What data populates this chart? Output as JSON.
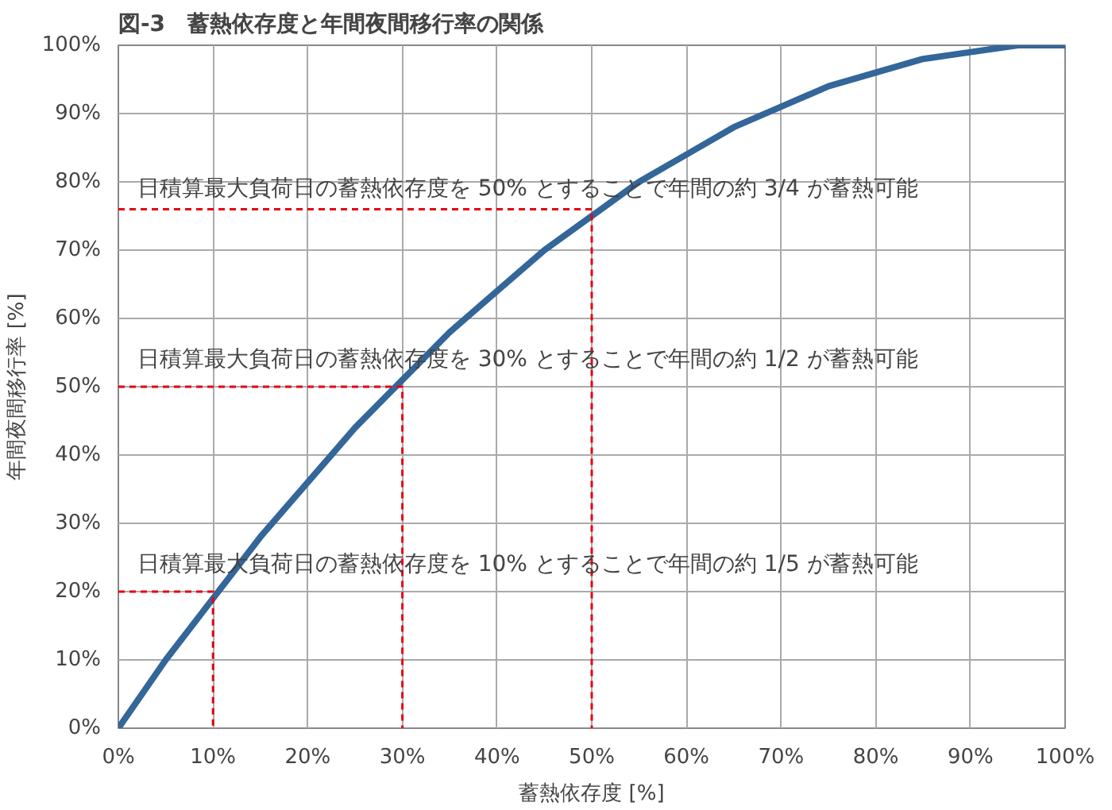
{
  "chart_data": {
    "type": "line",
    "title": "図-3　蓄熱依存度と年間夜間移行率の関係",
    "xlabel": "蓄熱依存度 [%]",
    "ylabel": "年間夜間移行率 [%]",
    "xlim": [
      0,
      100
    ],
    "ylim": [
      0,
      100
    ],
    "xticks": [
      {
        "value": 0,
        "label": "0%"
      },
      {
        "value": 10,
        "label": "10%"
      },
      {
        "value": 20,
        "label": "20%"
      },
      {
        "value": 30,
        "label": "30%"
      },
      {
        "value": 40,
        "label": "40%"
      },
      {
        "value": 50,
        "label": "50%"
      },
      {
        "value": 60,
        "label": "60%"
      },
      {
        "value": 70,
        "label": "70%"
      },
      {
        "value": 80,
        "label": "80%"
      },
      {
        "value": 90,
        "label": "90%"
      },
      {
        "value": 100,
        "label": "100%"
      }
    ],
    "yticks": [
      {
        "value": 0,
        "label": "0%"
      },
      {
        "value": 10,
        "label": "10%"
      },
      {
        "value": 20,
        "label": "20%"
      },
      {
        "value": 30,
        "label": "30%"
      },
      {
        "value": 40,
        "label": "40%"
      },
      {
        "value": 50,
        "label": "50%"
      },
      {
        "value": 60,
        "label": "60%"
      },
      {
        "value": 70,
        "label": "70%"
      },
      {
        "value": 80,
        "label": "80%"
      },
      {
        "value": 90,
        "label": "90%"
      },
      {
        "value": 100,
        "label": "100%"
      }
    ],
    "grid": true,
    "series": [
      {
        "color": "#336699",
        "x": [
          0,
          5,
          10,
          15,
          20,
          25,
          30,
          35,
          40,
          45,
          50,
          55,
          60,
          65,
          70,
          75,
          80,
          85,
          90,
          95,
          100
        ],
        "values": [
          0,
          10,
          19,
          28,
          36,
          44,
          51,
          58,
          64,
          70,
          75,
          80,
          84,
          88,
          91,
          94,
          96,
          98,
          99,
          100,
          100
        ]
      },
      {
        "color": "#e60012",
        "line_style": "dashed",
        "x": [
          0,
          10,
          10
        ],
        "values": [
          20,
          20,
          0
        ]
      },
      {
        "color": "#e60012",
        "line_style": "dashed",
        "x": [
          0,
          30,
          30
        ],
        "values": [
          50,
          50,
          0
        ]
      },
      {
        "color": "#e60012",
        "line_style": "dashed",
        "x": [
          0,
          50,
          50
        ],
        "values": [
          76,
          76,
          0
        ]
      }
    ],
    "annotations": [
      "日積算最大負荷日の蓄熱依存度を 50% とすることで年間の約 3/4 が蓄熱可能",
      "日積算最大負荷日の蓄熱依存度を 30% とすることで年間の約 1/2 が蓄熱可能",
      "日積算最大負荷日の蓄熱依存度を 10% とすることで年間の約 1/5 が蓄熱可能"
    ]
  }
}
